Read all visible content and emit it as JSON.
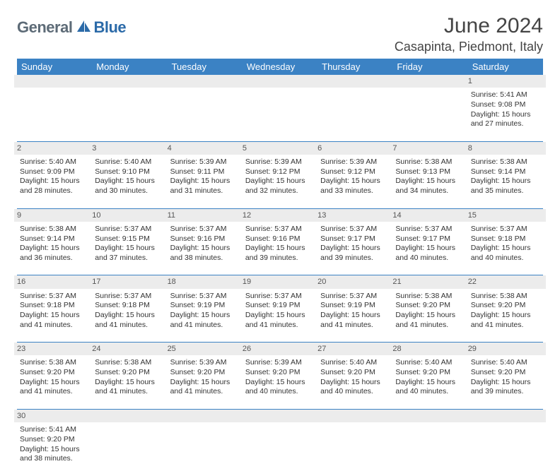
{
  "logo": {
    "part1": "General",
    "part2": "Blue"
  },
  "title": "June 2024",
  "location": "Casapinta, Piedmont, Italy",
  "colors": {
    "header_bg": "#3b82c4",
    "header_text": "#ffffff",
    "daynum_bg": "#ececec",
    "border": "#3b82c4",
    "logo_gray": "#5d6b77",
    "logo_blue": "#2b6aa8"
  },
  "weekdays": [
    "Sunday",
    "Monday",
    "Tuesday",
    "Wednesday",
    "Thursday",
    "Friday",
    "Saturday"
  ],
  "weeks": [
    [
      null,
      null,
      null,
      null,
      null,
      null,
      {
        "n": "1",
        "sunrise": "5:41 AM",
        "sunset": "9:08 PM",
        "dl1": "15 hours",
        "dl2": "and 27 minutes."
      }
    ],
    [
      {
        "n": "2",
        "sunrise": "5:40 AM",
        "sunset": "9:09 PM",
        "dl1": "15 hours",
        "dl2": "and 28 minutes."
      },
      {
        "n": "3",
        "sunrise": "5:40 AM",
        "sunset": "9:10 PM",
        "dl1": "15 hours",
        "dl2": "and 30 minutes."
      },
      {
        "n": "4",
        "sunrise": "5:39 AM",
        "sunset": "9:11 PM",
        "dl1": "15 hours",
        "dl2": "and 31 minutes."
      },
      {
        "n": "5",
        "sunrise": "5:39 AM",
        "sunset": "9:12 PM",
        "dl1": "15 hours",
        "dl2": "and 32 minutes."
      },
      {
        "n": "6",
        "sunrise": "5:39 AM",
        "sunset": "9:12 PM",
        "dl1": "15 hours",
        "dl2": "and 33 minutes."
      },
      {
        "n": "7",
        "sunrise": "5:38 AM",
        "sunset": "9:13 PM",
        "dl1": "15 hours",
        "dl2": "and 34 minutes."
      },
      {
        "n": "8",
        "sunrise": "5:38 AM",
        "sunset": "9:14 PM",
        "dl1": "15 hours",
        "dl2": "and 35 minutes."
      }
    ],
    [
      {
        "n": "9",
        "sunrise": "5:38 AM",
        "sunset": "9:14 PM",
        "dl1": "15 hours",
        "dl2": "and 36 minutes."
      },
      {
        "n": "10",
        "sunrise": "5:37 AM",
        "sunset": "9:15 PM",
        "dl1": "15 hours",
        "dl2": "and 37 minutes."
      },
      {
        "n": "11",
        "sunrise": "5:37 AM",
        "sunset": "9:16 PM",
        "dl1": "15 hours",
        "dl2": "and 38 minutes."
      },
      {
        "n": "12",
        "sunrise": "5:37 AM",
        "sunset": "9:16 PM",
        "dl1": "15 hours",
        "dl2": "and 39 minutes."
      },
      {
        "n": "13",
        "sunrise": "5:37 AM",
        "sunset": "9:17 PM",
        "dl1": "15 hours",
        "dl2": "and 39 minutes."
      },
      {
        "n": "14",
        "sunrise": "5:37 AM",
        "sunset": "9:17 PM",
        "dl1": "15 hours",
        "dl2": "and 40 minutes."
      },
      {
        "n": "15",
        "sunrise": "5:37 AM",
        "sunset": "9:18 PM",
        "dl1": "15 hours",
        "dl2": "and 40 minutes."
      }
    ],
    [
      {
        "n": "16",
        "sunrise": "5:37 AM",
        "sunset": "9:18 PM",
        "dl1": "15 hours",
        "dl2": "and 41 minutes."
      },
      {
        "n": "17",
        "sunrise": "5:37 AM",
        "sunset": "9:18 PM",
        "dl1": "15 hours",
        "dl2": "and 41 minutes."
      },
      {
        "n": "18",
        "sunrise": "5:37 AM",
        "sunset": "9:19 PM",
        "dl1": "15 hours",
        "dl2": "and 41 minutes."
      },
      {
        "n": "19",
        "sunrise": "5:37 AM",
        "sunset": "9:19 PM",
        "dl1": "15 hours",
        "dl2": "and 41 minutes."
      },
      {
        "n": "20",
        "sunrise": "5:37 AM",
        "sunset": "9:19 PM",
        "dl1": "15 hours",
        "dl2": "and 41 minutes."
      },
      {
        "n": "21",
        "sunrise": "5:38 AM",
        "sunset": "9:20 PM",
        "dl1": "15 hours",
        "dl2": "and 41 minutes."
      },
      {
        "n": "22",
        "sunrise": "5:38 AM",
        "sunset": "9:20 PM",
        "dl1": "15 hours",
        "dl2": "and 41 minutes."
      }
    ],
    [
      {
        "n": "23",
        "sunrise": "5:38 AM",
        "sunset": "9:20 PM",
        "dl1": "15 hours",
        "dl2": "and 41 minutes."
      },
      {
        "n": "24",
        "sunrise": "5:38 AM",
        "sunset": "9:20 PM",
        "dl1": "15 hours",
        "dl2": "and 41 minutes."
      },
      {
        "n": "25",
        "sunrise": "5:39 AM",
        "sunset": "9:20 PM",
        "dl1": "15 hours",
        "dl2": "and 41 minutes."
      },
      {
        "n": "26",
        "sunrise": "5:39 AM",
        "sunset": "9:20 PM",
        "dl1": "15 hours",
        "dl2": "and 40 minutes."
      },
      {
        "n": "27",
        "sunrise": "5:40 AM",
        "sunset": "9:20 PM",
        "dl1": "15 hours",
        "dl2": "and 40 minutes."
      },
      {
        "n": "28",
        "sunrise": "5:40 AM",
        "sunset": "9:20 PM",
        "dl1": "15 hours",
        "dl2": "and 40 minutes."
      },
      {
        "n": "29",
        "sunrise": "5:40 AM",
        "sunset": "9:20 PM",
        "dl1": "15 hours",
        "dl2": "and 39 minutes."
      }
    ],
    [
      {
        "n": "30",
        "sunrise": "5:41 AM",
        "sunset": "9:20 PM",
        "dl1": "15 hours",
        "dl2": "and 38 minutes."
      },
      null,
      null,
      null,
      null,
      null,
      null
    ]
  ],
  "labels": {
    "sunrise": "Sunrise:",
    "sunset": "Sunset:",
    "daylight": "Daylight:"
  }
}
